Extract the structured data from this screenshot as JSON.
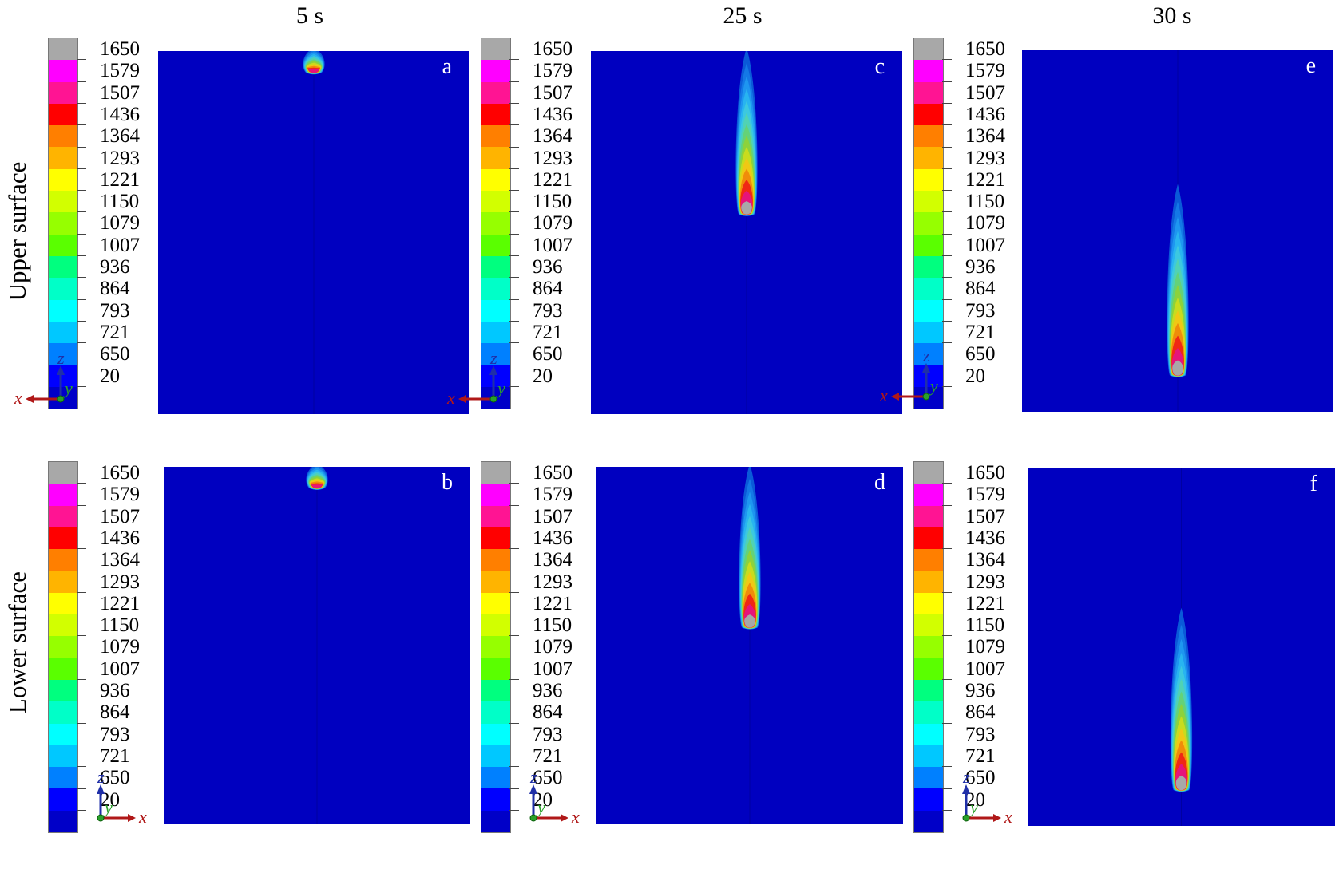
{
  "columns": [
    {
      "time_label": "5 s"
    },
    {
      "time_label": "25 s"
    },
    {
      "time_label": "30 s"
    }
  ],
  "rows": [
    {
      "surface_label": "Upper surface"
    },
    {
      "surface_label": "Lower surface"
    }
  ],
  "legend": {
    "values": [
      "1650",
      "1579",
      "1507",
      "1436",
      "1364",
      "1293",
      "1221",
      "1150",
      "1079",
      "1007",
      "936",
      "864",
      "793",
      "721",
      "650",
      "20"
    ],
    "colors": [
      "#a8a8a8",
      "#ff00ff",
      "#ff1493",
      "#ff0000",
      "#ff7f00",
      "#ffb400",
      "#ffff00",
      "#d2ff00",
      "#96ff00",
      "#5aff00",
      "#00ff7f",
      "#00ffc8",
      "#00ffff",
      "#00c8ff",
      "#0080ff",
      "#0000ff",
      "#0000c8"
    ]
  },
  "panels": [
    {
      "letter": "a",
      "row": 0,
      "col": 0,
      "plume_length_fraction": 0.08,
      "tip_fraction": 0.06
    },
    {
      "letter": "c",
      "row": 0,
      "col": 1,
      "plume_length_fraction": 0.46,
      "tip_fraction": 0.45
    },
    {
      "letter": "e",
      "row": 0,
      "col": 2,
      "plume_length_fraction": 0.53,
      "tip_fraction": 0.9
    },
    {
      "letter": "b",
      "row": 1,
      "col": 0,
      "plume_length_fraction": 0.07,
      "tip_fraction": 0.06
    },
    {
      "letter": "d",
      "row": 1,
      "col": 1,
      "plume_length_fraction": 0.46,
      "tip_fraction": 0.45
    },
    {
      "letter": "f",
      "row": 1,
      "col": 2,
      "plume_length_fraction": 0.51,
      "tip_fraction": 0.9
    }
  ],
  "axes": {
    "upper": {
      "vertical": "z",
      "horizontal": "x",
      "out_of_plane": "y"
    },
    "lower": {
      "vertical": "z",
      "horizontal": "x",
      "out_of_plane": "y"
    }
  },
  "background_color": "#0000c0"
}
